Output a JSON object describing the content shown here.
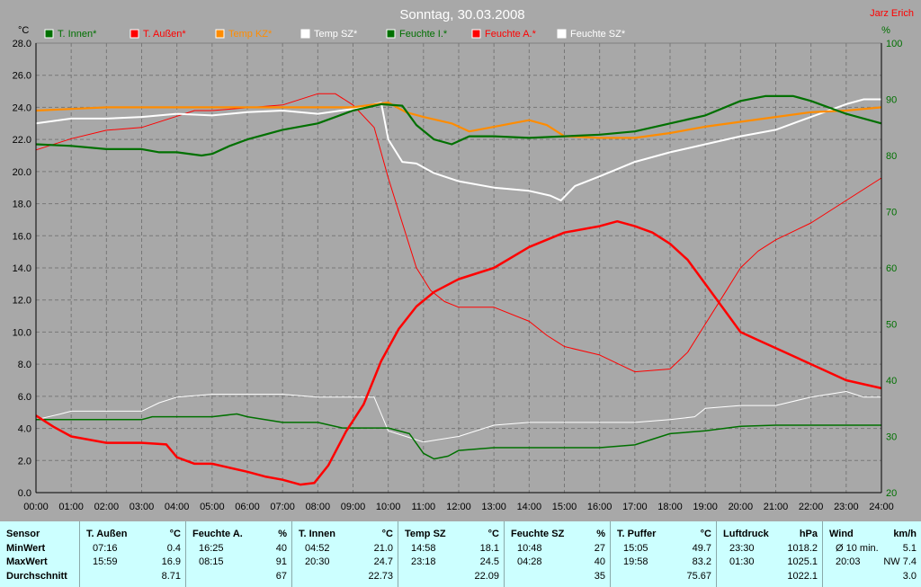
{
  "title": "Sonntag, 30.03.2008",
  "author": "Jarz Erich",
  "left_unit": "°C",
  "right_unit": "%",
  "legend": [
    {
      "label": "T. Innen*",
      "color": "#007000"
    },
    {
      "label": "T. Außen*",
      "color": "#ff0000"
    },
    {
      "label": "Temp KZ*",
      "color": "#ff8c00"
    },
    {
      "label": "Temp SZ*",
      "color": "#ffffff"
    },
    {
      "label": "Feuchte I.*",
      "color": "#007000"
    },
    {
      "label": "Feuchte A.*",
      "color": "#ff0000"
    },
    {
      "label": "Feuchte SZ*",
      "color": "#ffffff"
    }
  ],
  "chart_data": {
    "type": "line",
    "grid": true,
    "x_ticks": [
      "00:00",
      "01:00",
      "02:00",
      "03:00",
      "04:00",
      "05:00",
      "06:00",
      "07:00",
      "08:00",
      "09:00",
      "10:00",
      "11:00",
      "12:00",
      "13:00",
      "14:00",
      "15:00",
      "16:00",
      "17:00",
      "18:00",
      "19:00",
      "20:00",
      "21:00",
      "22:00",
      "23:00",
      "24:00"
    ],
    "y_left": {
      "min": 0,
      "max": 28,
      "ticks": [
        "0.0",
        "2.0",
        "4.0",
        "6.0",
        "8.0",
        "10.0",
        "12.0",
        "14.0",
        "16.0",
        "18.0",
        "20.0",
        "22.0",
        "24.0",
        "26.0",
        "28.0"
      ]
    },
    "y_right": {
      "min": 20,
      "max": 100,
      "ticks": [
        "20",
        "30",
        "40",
        "50",
        "60",
        "70",
        "80",
        "90",
        "100"
      ]
    },
    "series": [
      {
        "name": "T. Innen*",
        "axis": "left",
        "color": "#007000",
        "width": 2.2,
        "points": [
          [
            0,
            21.7
          ],
          [
            1,
            21.6
          ],
          [
            2,
            21.4
          ],
          [
            3,
            21.4
          ],
          [
            3.5,
            21.2
          ],
          [
            4,
            21.2
          ],
          [
            4.7,
            21.0
          ],
          [
            5,
            21.1
          ],
          [
            5.5,
            21.6
          ],
          [
            6,
            22.0
          ],
          [
            7,
            22.6
          ],
          [
            8,
            23.0
          ],
          [
            9,
            23.8
          ],
          [
            9.8,
            24.2
          ],
          [
            10.4,
            24.1
          ],
          [
            10.8,
            22.9
          ],
          [
            11.3,
            22.0
          ],
          [
            11.8,
            21.7
          ],
          [
            12.3,
            22.2
          ],
          [
            13,
            22.2
          ],
          [
            14,
            22.1
          ],
          [
            15,
            22.2
          ],
          [
            16,
            22.3
          ],
          [
            17,
            22.5
          ],
          [
            18,
            23.0
          ],
          [
            19,
            23.5
          ],
          [
            20,
            24.4
          ],
          [
            20.7,
            24.7
          ],
          [
            21.5,
            24.7
          ],
          [
            22,
            24.4
          ],
          [
            23,
            23.6
          ],
          [
            24,
            23.0
          ]
        ]
      },
      {
        "name": "T. Außen*",
        "axis": "left",
        "color": "#ff0000",
        "width": 2.5,
        "points": [
          [
            0,
            4.8
          ],
          [
            0.5,
            4.1
          ],
          [
            1,
            3.5
          ],
          [
            2,
            3.1
          ],
          [
            3,
            3.1
          ],
          [
            3.7,
            3.0
          ],
          [
            4,
            2.2
          ],
          [
            4.5,
            1.8
          ],
          [
            5,
            1.8
          ],
          [
            6,
            1.3
          ],
          [
            6.5,
            1.0
          ],
          [
            7,
            0.8
          ],
          [
            7.5,
            0.5
          ],
          [
            7.9,
            0.6
          ],
          [
            8.3,
            1.7
          ],
          [
            8.8,
            3.8
          ],
          [
            9.3,
            5.5
          ],
          [
            9.8,
            8.2
          ],
          [
            10.3,
            10.2
          ],
          [
            10.8,
            11.6
          ],
          [
            11.3,
            12.5
          ],
          [
            12,
            13.3
          ],
          [
            13,
            14.0
          ],
          [
            14,
            15.3
          ],
          [
            15,
            16.2
          ],
          [
            16,
            16.6
          ],
          [
            16.5,
            16.9
          ],
          [
            17,
            16.6
          ],
          [
            17.5,
            16.2
          ],
          [
            18,
            15.5
          ],
          [
            18.5,
            14.5
          ],
          [
            19,
            13.0
          ],
          [
            19.5,
            11.5
          ],
          [
            20,
            10.0
          ],
          [
            21,
            9.0
          ],
          [
            22,
            8.0
          ],
          [
            23,
            7.0
          ],
          [
            24,
            6.5
          ]
        ]
      },
      {
        "name": "Temp KZ*",
        "axis": "left",
        "color": "#ff8c00",
        "width": 2.2,
        "points": [
          [
            0,
            23.8
          ],
          [
            1,
            23.9
          ],
          [
            2,
            24.0
          ],
          [
            3,
            24.0
          ],
          [
            4,
            24.0
          ],
          [
            5,
            24.0
          ],
          [
            6,
            24.0
          ],
          [
            7,
            24.0
          ],
          [
            8,
            24.0
          ],
          [
            9,
            24.0
          ],
          [
            10,
            24.3
          ],
          [
            10.5,
            23.7
          ],
          [
            11,
            23.4
          ],
          [
            11.8,
            23.0
          ],
          [
            12.3,
            22.5
          ],
          [
            12.8,
            22.7
          ],
          [
            13.5,
            23.0
          ],
          [
            14,
            23.2
          ],
          [
            14.5,
            22.9
          ],
          [
            15,
            22.2
          ],
          [
            16,
            22.1
          ],
          [
            17,
            22.1
          ],
          [
            18,
            22.4
          ],
          [
            19,
            22.8
          ],
          [
            20,
            23.1
          ],
          [
            21,
            23.4
          ],
          [
            22,
            23.7
          ],
          [
            23,
            23.8
          ],
          [
            24,
            24.0
          ]
        ]
      },
      {
        "name": "Temp SZ*",
        "axis": "left",
        "color": "#ffffff",
        "width": 2.0,
        "points": [
          [
            0,
            23.0
          ],
          [
            1,
            23.3
          ],
          [
            2,
            23.3
          ],
          [
            3,
            23.4
          ],
          [
            4,
            23.6
          ],
          [
            5,
            23.5
          ],
          [
            6,
            23.7
          ],
          [
            7,
            23.8
          ],
          [
            8,
            23.6
          ],
          [
            9,
            23.9
          ],
          [
            9.8,
            24.3
          ],
          [
            10,
            22.0
          ],
          [
            10.4,
            20.6
          ],
          [
            10.8,
            20.5
          ],
          [
            11.3,
            19.9
          ],
          [
            12,
            19.4
          ],
          [
            13,
            19.0
          ],
          [
            14,
            18.8
          ],
          [
            14.6,
            18.5
          ],
          [
            14.9,
            18.2
          ],
          [
            15.3,
            19.1
          ],
          [
            16,
            19.7
          ],
          [
            17,
            20.6
          ],
          [
            18,
            21.2
          ],
          [
            19,
            21.7
          ],
          [
            20,
            22.2
          ],
          [
            21,
            22.6
          ],
          [
            22,
            23.4
          ],
          [
            23,
            24.2
          ],
          [
            23.5,
            24.5
          ],
          [
            24,
            24.5
          ]
        ]
      },
      {
        "name": "Feuchte I.*",
        "axis": "right",
        "color": "#007000",
        "width": 1.5,
        "points": [
          [
            0,
            33
          ],
          [
            1,
            33
          ],
          [
            2,
            33
          ],
          [
            3,
            33
          ],
          [
            3.3,
            33.5
          ],
          [
            4,
            33.5
          ],
          [
            5,
            33.5
          ],
          [
            5.7,
            34
          ],
          [
            6,
            33.5
          ],
          [
            6.5,
            33
          ],
          [
            7,
            32.5
          ],
          [
            8,
            32.5
          ],
          [
            8.7,
            31.5
          ],
          [
            9,
            31.5
          ],
          [
            10,
            31.5
          ],
          [
            10.6,
            30.5
          ],
          [
            11,
            27
          ],
          [
            11.3,
            26
          ],
          [
            11.7,
            26.5
          ],
          [
            12,
            27.5
          ],
          [
            13,
            28
          ],
          [
            14,
            28
          ],
          [
            15,
            28
          ],
          [
            16,
            28
          ],
          [
            17,
            28.5
          ],
          [
            17.5,
            29.5
          ],
          [
            18,
            30.5
          ],
          [
            19,
            31
          ],
          [
            20,
            31.8
          ],
          [
            21,
            32
          ],
          [
            22,
            32
          ],
          [
            23,
            32
          ],
          [
            24,
            32
          ]
        ]
      },
      {
        "name": "Feuchte A.*",
        "axis": "right",
        "color": "#ff0000",
        "width": 1.0,
        "points": [
          [
            0,
            81
          ],
          [
            1,
            83
          ],
          [
            2,
            84.5
          ],
          [
            3,
            85
          ],
          [
            4,
            87
          ],
          [
            4.5,
            88
          ],
          [
            5,
            88
          ],
          [
            6,
            88.5
          ],
          [
            7,
            89
          ],
          [
            8,
            91
          ],
          [
            8.5,
            91
          ],
          [
            9,
            89
          ],
          [
            9.6,
            85
          ],
          [
            10,
            76
          ],
          [
            10.4,
            68
          ],
          [
            10.8,
            60
          ],
          [
            11.2,
            56
          ],
          [
            11.6,
            54
          ],
          [
            12,
            53
          ],
          [
            13,
            53
          ],
          [
            14,
            50.5
          ],
          [
            14.5,
            48
          ],
          [
            15,
            46
          ],
          [
            16,
            44.5
          ],
          [
            17,
            41.5
          ],
          [
            18,
            42
          ],
          [
            18.5,
            45
          ],
          [
            19,
            50
          ],
          [
            19.5,
            55
          ],
          [
            20,
            60
          ],
          [
            20.5,
            63
          ],
          [
            21,
            65
          ],
          [
            22,
            68
          ],
          [
            23,
            72
          ],
          [
            24,
            76
          ]
        ]
      },
      {
        "name": "Feuchte SZ*",
        "axis": "right",
        "color": "#ffffff",
        "width": 1.0,
        "points": [
          [
            0,
            33
          ],
          [
            0.7,
            34
          ],
          [
            1,
            34.5
          ],
          [
            2,
            34.5
          ],
          [
            3,
            34.5
          ],
          [
            3.5,
            36
          ],
          [
            4,
            37
          ],
          [
            5,
            37.5
          ],
          [
            6,
            37.5
          ],
          [
            7,
            37.5
          ],
          [
            8,
            37
          ],
          [
            9,
            37
          ],
          [
            9.6,
            37
          ],
          [
            10,
            31
          ],
          [
            10.5,
            30
          ],
          [
            11,
            29
          ],
          [
            12,
            30
          ],
          [
            13,
            32
          ],
          [
            14,
            32.5
          ],
          [
            15,
            32.5
          ],
          [
            16,
            32.5
          ],
          [
            17,
            32.5
          ],
          [
            18,
            33
          ],
          [
            18.7,
            33.5
          ],
          [
            19,
            35
          ],
          [
            20,
            35.5
          ],
          [
            21,
            35.5
          ],
          [
            22,
            37
          ],
          [
            23,
            38
          ],
          [
            23.5,
            37
          ],
          [
            24,
            37
          ]
        ]
      }
    ]
  },
  "stats": {
    "headers": [
      {
        "name": "Sensor",
        "unit": ""
      },
      {
        "name": "T. Außen",
        "unit": "°C"
      },
      {
        "name": "Feuchte A.",
        "unit": "%"
      },
      {
        "name": "T. Innen",
        "unit": "°C"
      },
      {
        "name": "Temp SZ",
        "unit": "°C"
      },
      {
        "name": "Feuchte SZ",
        "unit": "%"
      },
      {
        "name": "T. Puffer",
        "unit": "°C"
      },
      {
        "name": "Luftdruck",
        "unit": "hPa"
      },
      {
        "name": "Wind",
        "unit": "km/h"
      }
    ],
    "row_labels": [
      "MinWert",
      "MaxWert",
      "Durchschnitt"
    ],
    "columns": [
      {
        "rows": [
          [
            "07:16",
            "0.4"
          ],
          [
            "15:59",
            "16.9"
          ],
          [
            "",
            "8.71"
          ]
        ]
      },
      {
        "rows": [
          [
            "16:25",
            "40"
          ],
          [
            "08:15",
            "91"
          ],
          [
            "",
            "67"
          ]
        ]
      },
      {
        "rows": [
          [
            "04:52",
            "21.0"
          ],
          [
            "20:30",
            "24.7"
          ],
          [
            "",
            "22.73"
          ]
        ]
      },
      {
        "rows": [
          [
            "14:58",
            "18.1"
          ],
          [
            "23:18",
            "24.5"
          ],
          [
            "",
            "22.09"
          ]
        ]
      },
      {
        "rows": [
          [
            "10:48",
            "27"
          ],
          [
            "04:28",
            "40"
          ],
          [
            "",
            "35"
          ]
        ]
      },
      {
        "rows": [
          [
            "15:05",
            "49.7"
          ],
          [
            "19:58",
            "83.2"
          ],
          [
            "",
            "75.67"
          ]
        ]
      },
      {
        "rows": [
          [
            "23:30",
            "1018.2"
          ],
          [
            "01:30",
            "1025.1"
          ],
          [
            "",
            "1022.1"
          ]
        ]
      },
      {
        "rows": [
          [
            "Ø 10 min.",
            "5.1"
          ],
          [
            "20:03",
            "NW 7.4"
          ],
          [
            "",
            "3.0"
          ]
        ]
      }
    ]
  }
}
